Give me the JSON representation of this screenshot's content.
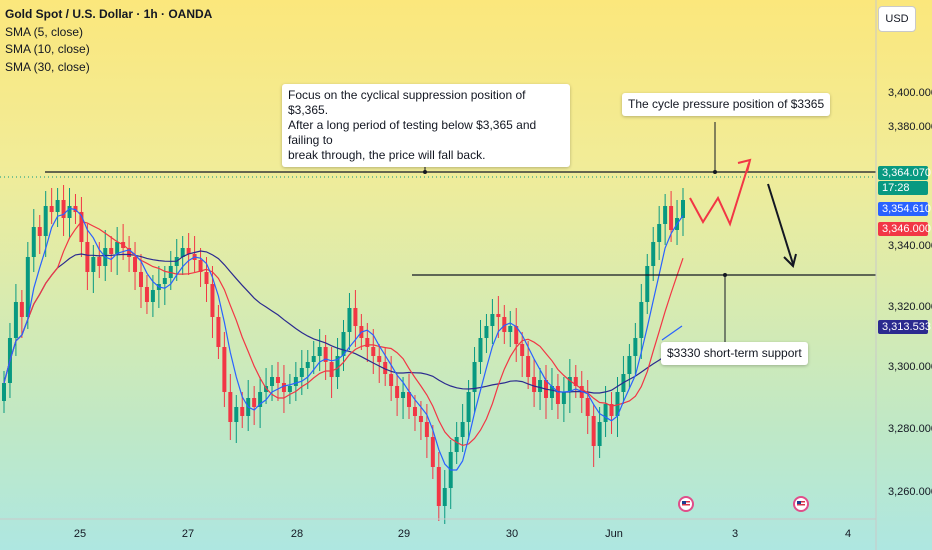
{
  "legend": {
    "title": "Gold Spot / U.S. Dollar · 1h · OANDA",
    "indicators": [
      "SMA (5, close)",
      "SMA (10, close)",
      "SMA (30, close)"
    ]
  },
  "currency": "USD",
  "annotations": {
    "resistance_note": "Focus on the cyclical suppression position of $3,365.\nAfter a long period of testing below $3,365 and failing to\nbreak through, the price will fall back.",
    "pressure_label": "The cycle pressure position of $3365",
    "support_label": "$3330 short-term support"
  },
  "price_tags": {
    "last_price": "3,364.070",
    "countdown": "17:28",
    "sma5": "3,354.610",
    "sma10": "3,346.000",
    "sma30": "3,313.533"
  },
  "colors": {
    "up": "#089981",
    "down": "#f23645",
    "sma5": "#2962ff",
    "sma10": "#f23645",
    "sma30": "#2b2a8f",
    "projection": "#f23645",
    "level_line": "#131722"
  },
  "event_icons": [
    "us-flag-icon",
    "us-flag-icon"
  ],
  "chart_data": {
    "type": "candlestick",
    "symbol": "XAUUSD",
    "interval": "1h",
    "y_ticks": [
      3260,
      3280,
      3300,
      3320,
      3340,
      3360,
      3380,
      3400
    ],
    "y_tick_labels": [
      "3,260.000",
      "3,280.000",
      "3,300.000",
      "3,320.000",
      "3,340.000",
      "3,360.000",
      "3,380.000",
      "3,400.000"
    ],
    "x_tick_labels": [
      "25",
      "27",
      "28",
      "29",
      "30",
      "Jun",
      "3",
      "4"
    ],
    "levels": [
      {
        "price": 3365,
        "label": "The cycle pressure position of $3365"
      },
      {
        "price": 3330,
        "label": "$3330 short-term support"
      }
    ],
    "last_price": 3364.07,
    "sma_values": {
      "sma5": 3354.61,
      "sma10": 3346.0,
      "sma30": 3313.533
    },
    "closes": [
      3303,
      3318,
      3330,
      3325,
      3345,
      3355,
      3352,
      3362,
      3360,
      3364,
      3358,
      3362,
      3360,
      3350,
      3340,
      3345,
      3342,
      3348,
      3346,
      3350,
      3348,
      3345,
      3340,
      3335,
      3330,
      3334,
      3336,
      3338,
      3342,
      3345,
      3348,
      3346,
      3344,
      3340,
      3336,
      3325,
      3315,
      3300,
      3290,
      3295,
      3292,
      3298,
      3295,
      3300,
      3302,
      3305,
      3303,
      3300,
      3302,
      3305,
      3308,
      3310,
      3312,
      3315,
      3310,
      3305,
      3312,
      3320,
      3328,
      3322,
      3318,
      3315,
      3312,
      3310,
      3306,
      3302,
      3298,
      3300,
      3295,
      3292,
      3290,
      3285,
      3275,
      3262,
      3268,
      3280,
      3285,
      3290,
      3300,
      3310,
      3318,
      3322,
      3326,
      3325,
      3320,
      3322,
      3316,
      3312,
      3305,
      3300,
      3304,
      3298,
      3302,
      3296,
      3300,
      3305,
      3302,
      3298,
      3292,
      3282,
      3290,
      3296,
      3292,
      3300,
      3306,
      3312,
      3318,
      3330,
      3342,
      3350,
      3356,
      3362,
      3354,
      3358,
      3364
    ]
  }
}
